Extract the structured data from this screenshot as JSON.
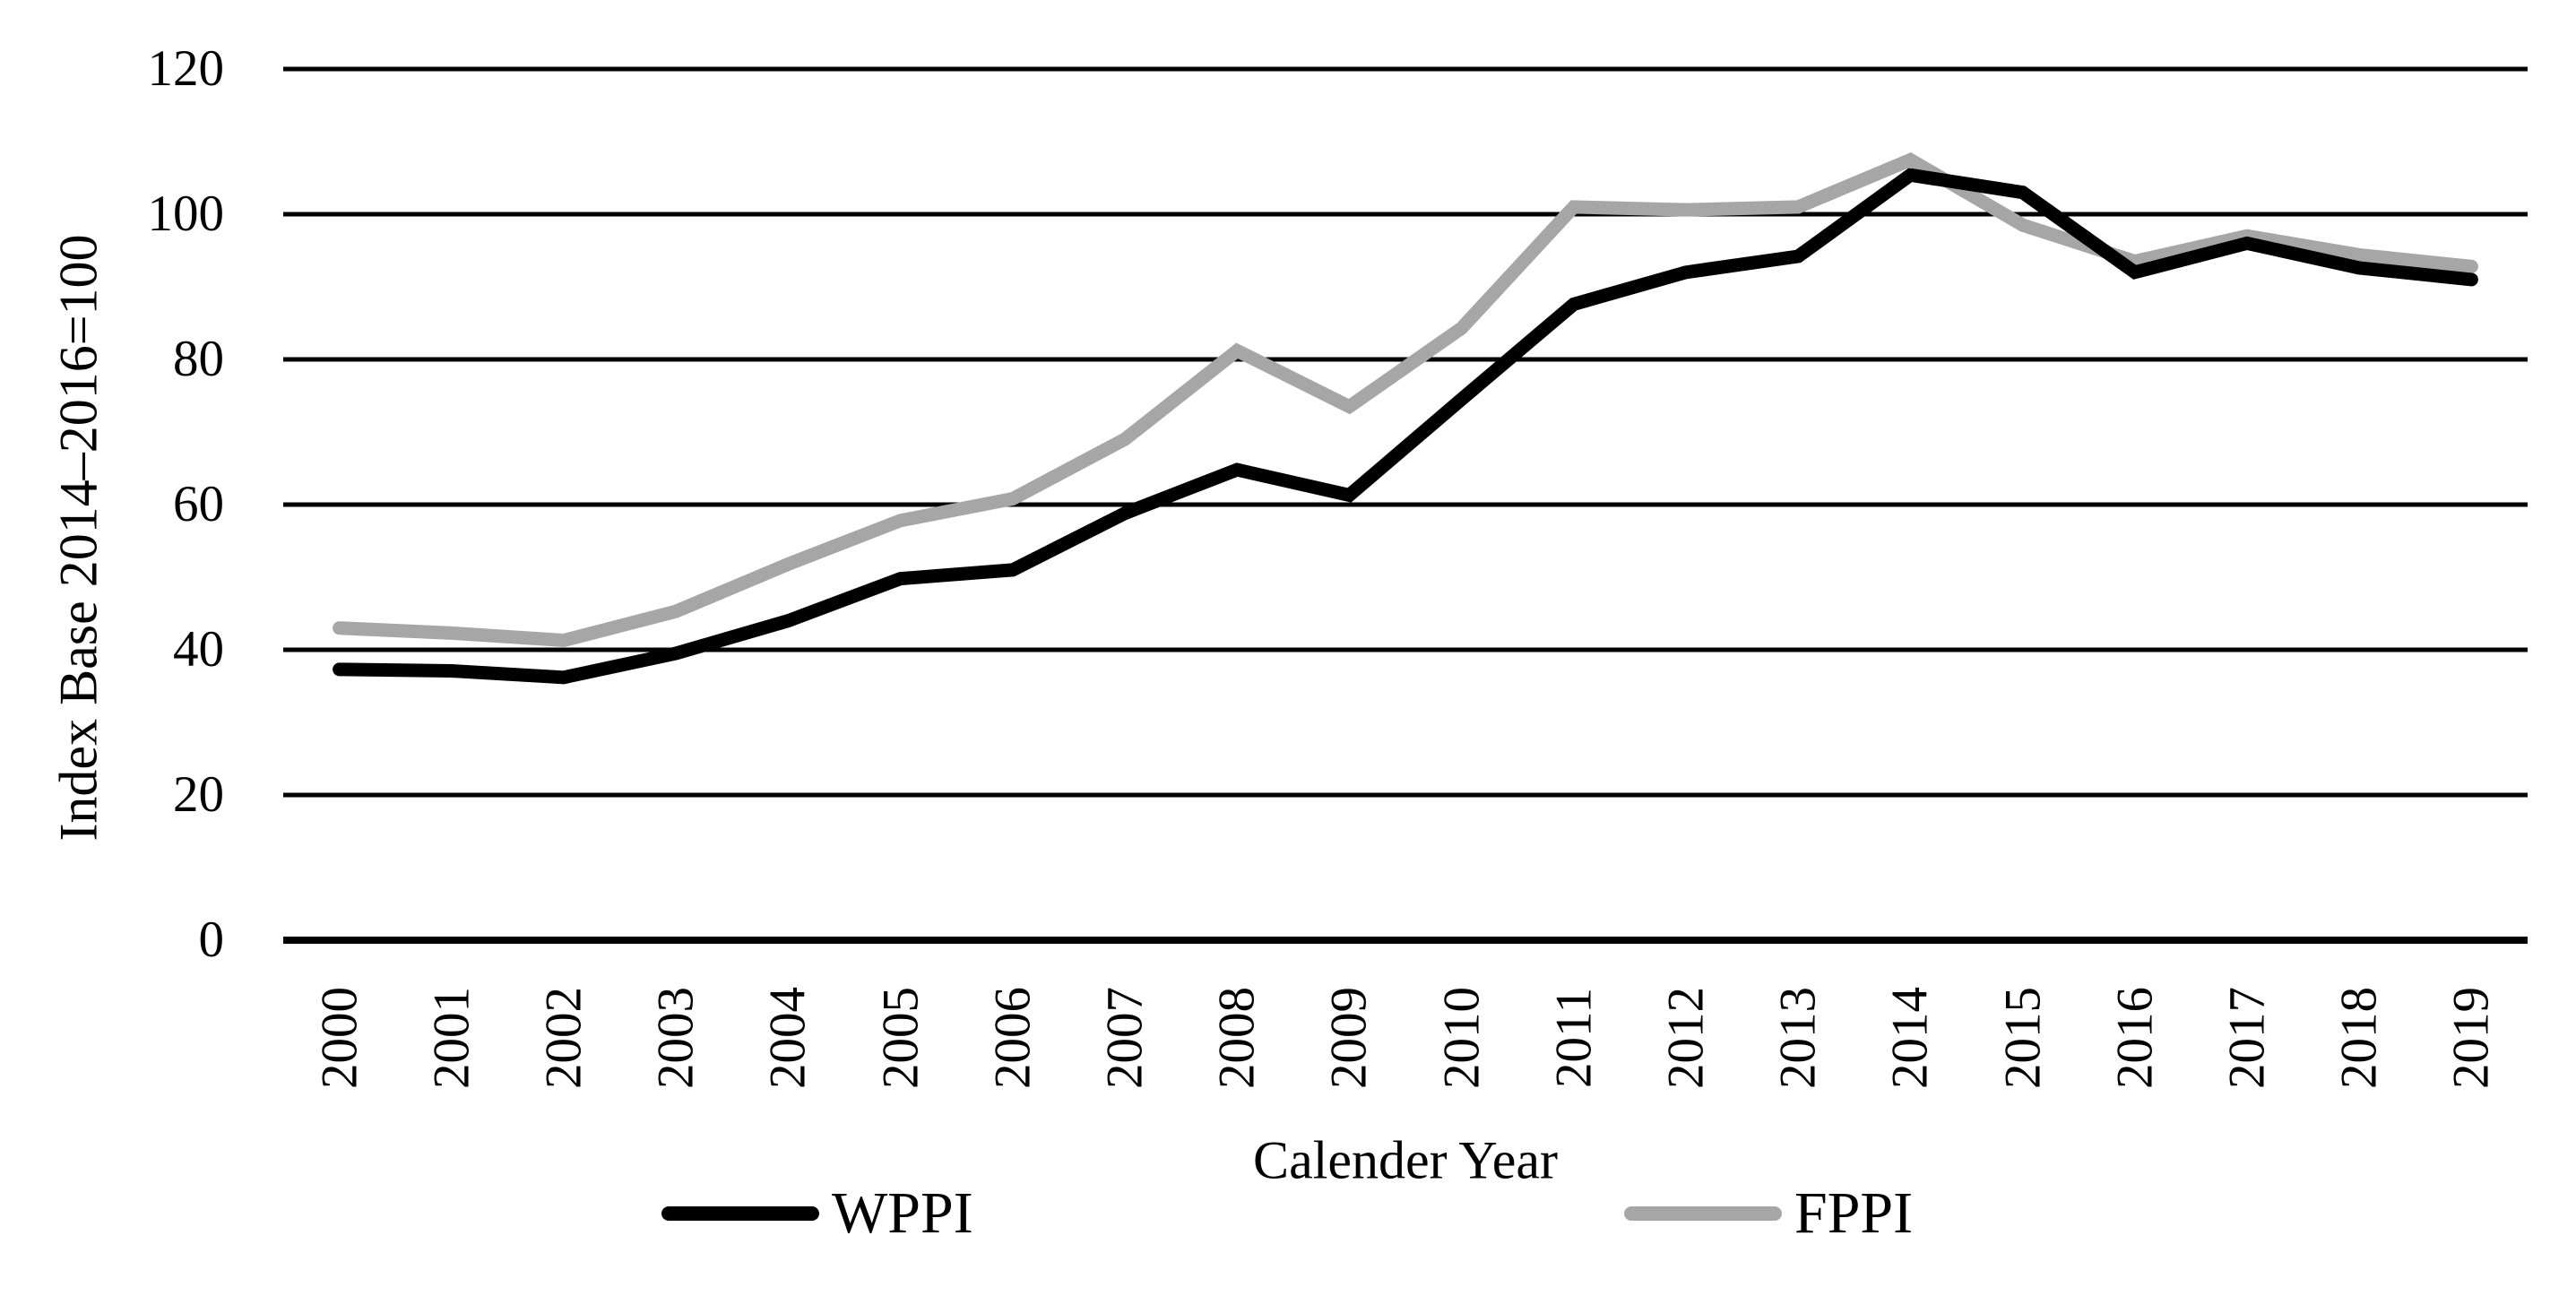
{
  "chart_data": {
    "type": "line",
    "title": "",
    "xlabel": "Calender Year",
    "ylabel": "Index Base 2014–2016=100",
    "x": [
      "2000",
      "2001",
      "2002",
      "2003",
      "2004",
      "2005",
      "2006",
      "2007",
      "2008",
      "2009",
      "2010",
      "2011",
      "2012",
      "2013",
      "2014",
      "2015",
      "2016",
      "2017",
      "2018",
      "2019"
    ],
    "series": [
      {
        "name": "WPPI",
        "color": "#000000",
        "values": [
          37.3,
          37.1,
          36.2,
          39.5,
          44.0,
          49.8,
          51.0,
          58.8,
          64.8,
          61.3,
          74.5,
          87.6,
          92.0,
          94.2,
          105.4,
          103.0,
          92.0,
          96.0,
          92.6,
          91.0
        ]
      },
      {
        "name": "FPPI",
        "color": "#a6a6a6",
        "values": [
          43.0,
          42.3,
          41.3,
          45.3,
          51.8,
          57.8,
          60.8,
          69.0,
          81.2,
          73.5,
          84.3,
          101.0,
          100.6,
          101.0,
          107.5,
          98.5,
          93.5,
          97.0,
          94.4,
          92.8
        ]
      }
    ],
    "ylim": [
      0,
      120
    ],
    "yticks": [
      0,
      20,
      40,
      60,
      80,
      100,
      120
    ],
    "grid": "horizontal",
    "legend_position": "bottom",
    "gridline_color": "#000000",
    "background_color": "#ffffff"
  }
}
